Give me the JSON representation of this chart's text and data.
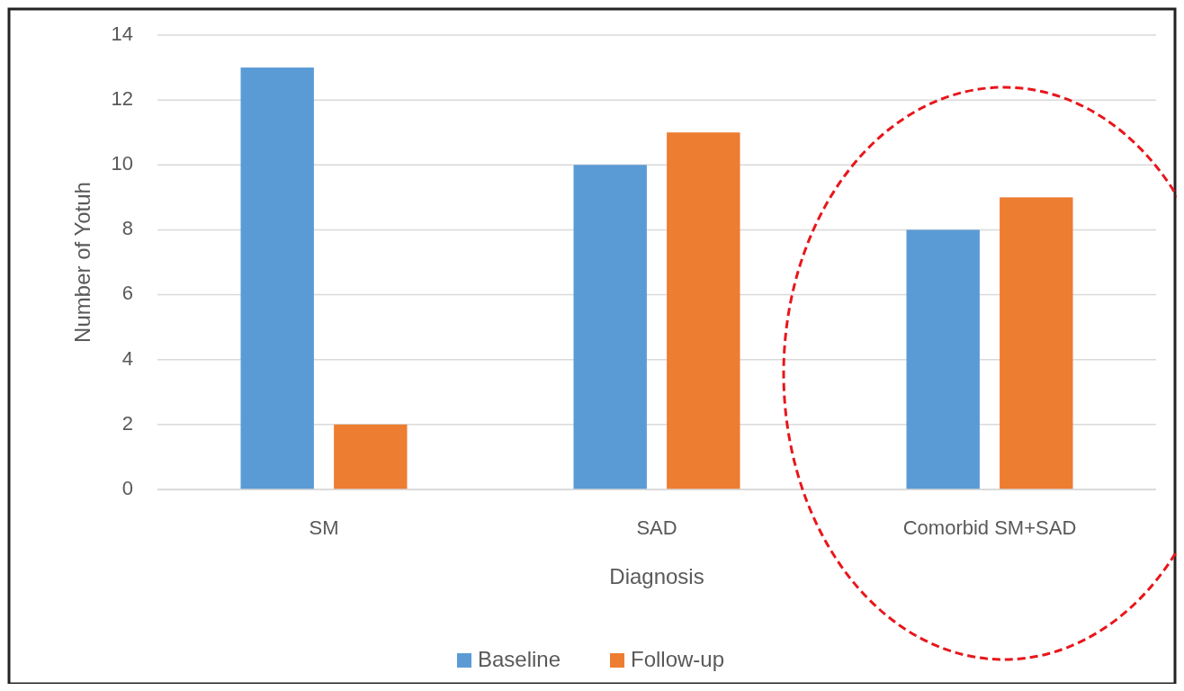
{
  "chart_data": {
    "type": "bar",
    "xlabel": "Diagnosis",
    "ylabel": "Number of Yotuh",
    "categories": [
      "SM",
      "SAD",
      "Comorbid SM+SAD"
    ],
    "series": [
      {
        "name": "Baseline",
        "color": "#5b9bd5",
        "values": [
          13,
          10,
          8
        ]
      },
      {
        "name": "Follow-up",
        "color": "#ed7d31",
        "values": [
          2,
          11,
          9
        ]
      }
    ],
    "ylim": [
      0,
      14
    ],
    "yticks": [
      0,
      2,
      4,
      6,
      8,
      10,
      12,
      14
    ],
    "grid": "y",
    "legend": "bottom"
  }
}
